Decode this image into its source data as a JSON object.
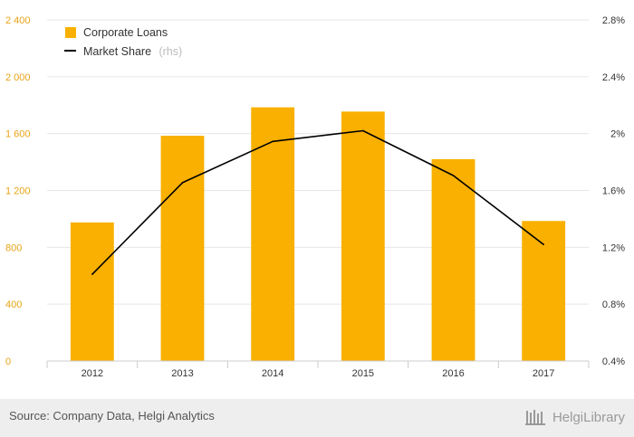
{
  "chart_data": {
    "type": "bar",
    "categories": [
      "2012",
      "2013",
      "2014",
      "2015",
      "2016",
      "2017"
    ],
    "series": [
      {
        "name": "Corporate Loans",
        "type": "bar",
        "axis": "left",
        "color": "#f9b000",
        "values": [
          975,
          1585,
          1785,
          1755,
          1420,
          985
        ]
      },
      {
        "name": "Market Share",
        "name_note": "(rhs)",
        "type": "line",
        "axis": "right",
        "color": "#000000",
        "values": [
          1.01,
          1.655,
          1.945,
          2.02,
          1.705,
          1.22
        ]
      }
    ],
    "y_left": {
      "ylim": [
        0,
        2400
      ],
      "ticks": [
        "0",
        "400",
        "800",
        "1 200",
        "1 600",
        "2 000",
        "2 400"
      ],
      "tick_values": [
        0,
        400,
        800,
        1200,
        1600,
        2000,
        2400
      ]
    },
    "y_right": {
      "ylim": [
        0.4,
        2.8
      ],
      "ticks": [
        "0.4%",
        "0.8%",
        "1.2%",
        "1.6%",
        "2%",
        "2.4%",
        "2.8%"
      ],
      "tick_values": [
        0.4,
        0.8,
        1.2,
        1.6,
        2.0,
        2.4,
        2.8
      ]
    },
    "grid": true,
    "legend_position": "top-left"
  },
  "footer": {
    "source": "Source: Company Data, Helgi Analytics",
    "brand": "HelgiLibrary"
  },
  "colors": {
    "bar": "#f9b000",
    "line": "#000000",
    "grid": "#e6e6e6",
    "left_axis_text": "#e8a317"
  },
  "icons": {
    "brand_logo": "library-columns-icon"
  }
}
